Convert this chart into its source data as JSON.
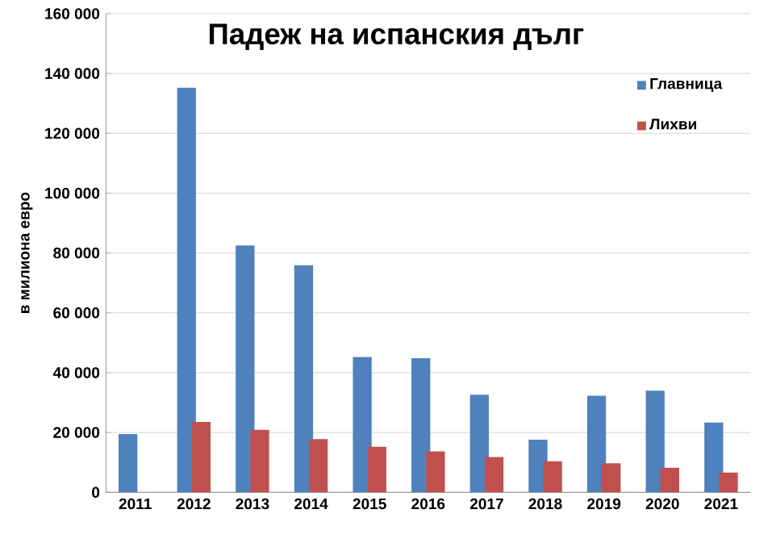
{
  "chart_data": {
    "type": "bar",
    "title": "Падеж на испанския дълг",
    "ylabel": "в милиона евро",
    "categories": [
      "2011",
      "2012",
      "2013",
      "2014",
      "2015",
      "2016",
      "2017",
      "2018",
      "2019",
      "2020",
      "2021"
    ],
    "series": [
      {
        "name": "Главница",
        "color": "#4f81bd",
        "values": [
          19500,
          135300,
          82500,
          75900,
          45200,
          44800,
          32600,
          17600,
          32300,
          34000,
          23300
        ]
      },
      {
        "name": "Лихви",
        "color": "#c0504d",
        "values": [
          null,
          23500,
          20900,
          17800,
          15200,
          13700,
          11800,
          10400,
          9700,
          8200,
          6600
        ]
      }
    ],
    "ylim": [
      0,
      160000
    ],
    "yticks": [
      0,
      {
        "value": 20000,
        "label": "20 000"
      },
      {
        "value": 40000,
        "label": "40 000"
      },
      {
        "value": 60000,
        "label": "60 000"
      },
      {
        "value": 80000,
        "label": "80 000"
      },
      {
        "value": 100000,
        "label": "100 000"
      },
      {
        "value": 120000,
        "label": "120 000"
      },
      {
        "value": 140000,
        "label": "140 000"
      },
      {
        "value": 160000,
        "label": "160 000"
      }
    ],
    "grid": "y",
    "legend": "top right"
  }
}
